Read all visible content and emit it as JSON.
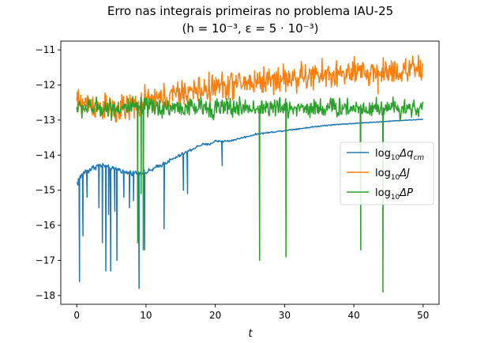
{
  "chart_data": {
    "type": "line",
    "title": "Erro nas integrais primeiras no problema IAU-25",
    "subtitle": "(h = 10⁻³, ε = 5 · 10⁻³)",
    "xlabel": "t",
    "ylabel": "",
    "xlim": [
      -2.3,
      52.3
    ],
    "ylim": [
      -18.25,
      -10.75
    ],
    "xticks": [
      0,
      10,
      20,
      30,
      40,
      50
    ],
    "yticks": [
      -18,
      -17,
      -16,
      -15,
      -14,
      -13,
      -12,
      -11
    ],
    "xtick_labels": [
      "0",
      "10",
      "20",
      "30",
      "40",
      "50"
    ],
    "ytick_labels": [
      "−18",
      "−17",
      "−16",
      "−15",
      "−14",
      "−13",
      "−12",
      "−11"
    ],
    "grid": false,
    "legend_position": "center-right",
    "series": [
      {
        "name": "log₁₀Δq_cm",
        "legend_main": "log",
        "legend_sub": "10",
        "legend_rest": "Δq",
        "legend_sub2": "cm",
        "color": "#1f77b4",
        "baseline": [
          [
            0,
            -14.8
          ],
          [
            1,
            -14.5
          ],
          [
            2,
            -14.4
          ],
          [
            3,
            -14.3
          ],
          [
            4,
            -14.3
          ],
          [
            5,
            -14.4
          ],
          [
            6,
            -14.4
          ],
          [
            7,
            -14.5
          ],
          [
            8,
            -14.5
          ],
          [
            9,
            -14.5
          ],
          [
            10,
            -14.5
          ],
          [
            11,
            -14.4
          ],
          [
            12,
            -14.3
          ],
          [
            13,
            -14.2
          ],
          [
            14,
            -14.1
          ],
          [
            15,
            -14.0
          ],
          [
            16,
            -13.9
          ],
          [
            17,
            -13.8
          ],
          [
            18,
            -13.7
          ],
          [
            19,
            -13.7
          ],
          [
            20,
            -13.6
          ],
          [
            22,
            -13.6
          ],
          [
            24,
            -13.5
          ],
          [
            26,
            -13.4
          ],
          [
            28,
            -13.35
          ],
          [
            30,
            -13.3
          ],
          [
            32,
            -13.25
          ],
          [
            34,
            -13.2
          ],
          [
            36,
            -13.15
          ],
          [
            38,
            -13.12
          ],
          [
            40,
            -13.1
          ],
          [
            42,
            -13.07
          ],
          [
            44,
            -13.05
          ],
          [
            46,
            -13.02
          ],
          [
            48,
            -13.0
          ],
          [
            50,
            -12.98
          ]
        ],
        "noise": 0.13,
        "noise_span": [
          [
            0,
            0.5
          ],
          [
            1,
            0.4
          ],
          [
            3,
            0.3
          ],
          [
            9,
            0.25
          ],
          [
            12,
            0.25
          ],
          [
            14,
            0.2
          ],
          [
            21,
            0.12
          ],
          [
            26,
            0.08
          ],
          [
            50,
            0.03
          ]
        ],
        "spikes": [
          [
            0.2,
            -14.8
          ],
          [
            0.4,
            -17.6
          ],
          [
            0.9,
            -16.3
          ],
          [
            1.5,
            -15.2
          ],
          [
            3.2,
            -15.5
          ],
          [
            3.7,
            -16.5
          ],
          [
            4.2,
            -17.3
          ],
          [
            4.6,
            -15.7
          ],
          [
            4.9,
            -17.3
          ],
          [
            5.5,
            -15.6
          ],
          [
            5.8,
            -17.0
          ],
          [
            6.8,
            -15.2
          ],
          [
            7.6,
            -15.5
          ],
          [
            8.2,
            -15.3
          ],
          [
            9.0,
            -17.8
          ],
          [
            9.8,
            -16.7
          ],
          [
            12.6,
            -16.1
          ],
          [
            15.4,
            -15.0
          ],
          [
            16.0,
            -15.1
          ],
          [
            21.0,
            -14.3
          ]
        ]
      },
      {
        "name": "log₁₀ΔJ",
        "legend_main": "log",
        "legend_sub": "10",
        "legend_rest": "ΔJ",
        "legend_sub2": "",
        "color": "#ff7f0e",
        "baseline": [
          [
            0,
            -12.5
          ],
          [
            2,
            -12.55
          ],
          [
            4,
            -12.65
          ],
          [
            6,
            -12.75
          ],
          [
            8,
            -12.6
          ],
          [
            10,
            -12.5
          ],
          [
            12,
            -12.4
          ],
          [
            14,
            -12.3
          ],
          [
            16,
            -12.2
          ],
          [
            18,
            -12.15
          ],
          [
            20,
            -12.05
          ],
          [
            22,
            -12.0
          ],
          [
            24,
            -11.95
          ],
          [
            26,
            -11.9
          ],
          [
            28,
            -11.85
          ],
          [
            30,
            -11.82
          ],
          [
            32,
            -11.8
          ],
          [
            34,
            -11.75
          ],
          [
            36,
            -11.72
          ],
          [
            38,
            -11.7
          ],
          [
            40,
            -11.68
          ],
          [
            42,
            -11.65
          ],
          [
            44,
            -11.62
          ],
          [
            46,
            -11.6
          ],
          [
            48,
            -11.58
          ],
          [
            50,
            -11.6
          ]
        ],
        "noise": 0.2,
        "noise_span": [
          [
            0,
            1
          ],
          [
            50,
            1
          ]
        ],
        "spikes": [
          [
            5.6,
            -13.05
          ],
          [
            8.3,
            -12.95
          ],
          [
            17.5,
            -12.45
          ],
          [
            43.5,
            -12.25
          ],
          [
            47.5,
            -11.25
          ],
          [
            49.6,
            -11.3
          ]
        ]
      },
      {
        "name": "log₁₀ΔP",
        "legend_main": "log",
        "legend_sub": "10",
        "legend_rest": "ΔP",
        "legend_sub2": "",
        "color": "#2ca02c",
        "baseline": [
          [
            0,
            -12.65
          ],
          [
            50,
            -12.65
          ]
        ],
        "noise": 0.14,
        "noise_span": [
          [
            0,
            1
          ],
          [
            50,
            1
          ]
        ],
        "spikes": [
          [
            8.8,
            -16.5
          ],
          [
            9.3,
            -15.1
          ],
          [
            9.6,
            -16.7
          ],
          [
            26.4,
            -17.0
          ],
          [
            30.2,
            -16.9
          ],
          [
            41.0,
            -16.7
          ],
          [
            44.2,
            -17.9
          ]
        ]
      }
    ]
  }
}
